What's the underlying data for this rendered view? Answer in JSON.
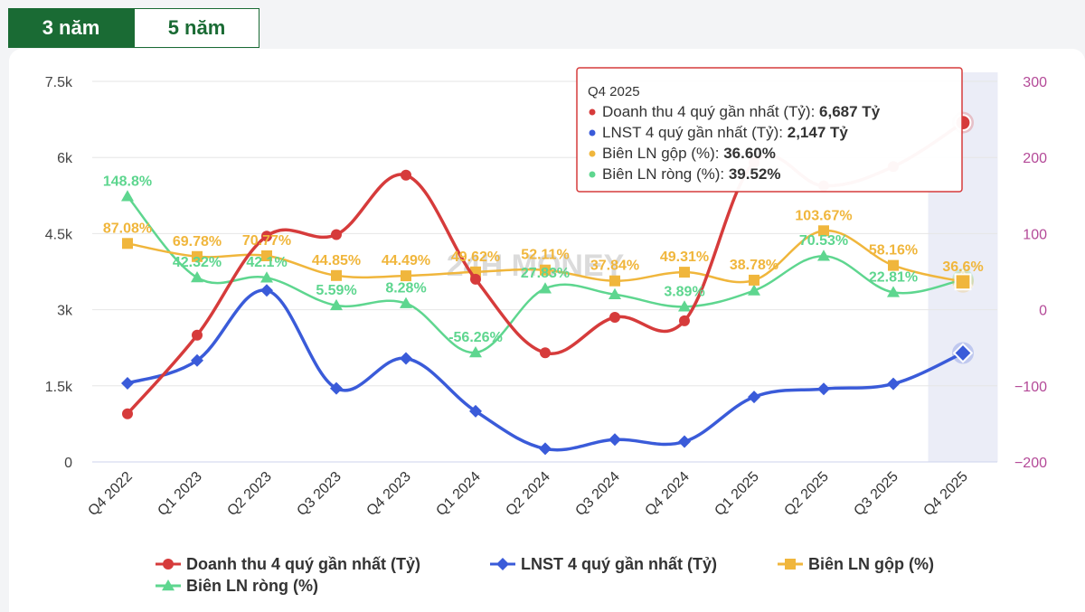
{
  "tabs": [
    {
      "label": "3 năm",
      "active": true
    },
    {
      "label": "5 năm",
      "active": false
    }
  ],
  "watermark": "24H MONEY",
  "chart_data": {
    "type": "line",
    "categories": [
      "Q4 2022",
      "Q1 2023",
      "Q2 2023",
      "Q3 2023",
      "Q4 2023",
      "Q1 2024",
      "Q2 2024",
      "Q3 2024",
      "Q4 2024",
      "Q1 2025",
      "Q2 2025",
      "Q3 2025",
      "Q4 2025"
    ],
    "left_axis": {
      "min": 0,
      "max": 7500,
      "ticks": [
        0,
        1500,
        3000,
        4500,
        6000,
        7500
      ],
      "tick_labels": [
        "0",
        "1.5k",
        "3k",
        "4.5k",
        "6k",
        "7.5k"
      ]
    },
    "right_axis": {
      "min": -200,
      "max": 300,
      "ticks": [
        -200,
        -100,
        0,
        100,
        200,
        300
      ],
      "tick_labels": [
        "−200",
        "−100",
        "0",
        "100",
        "200",
        "300"
      ]
    },
    "grid": true,
    "legend_position": "bottom",
    "highlight_category": "Q4 2025",
    "series": [
      {
        "name": "Doanh thu 4 quý gần nhất (Tỷ)",
        "axis": "left",
        "color": "#d63b3b",
        "marker": "circle",
        "values": [
          950,
          2500,
          4450,
          4480,
          5650,
          3600,
          2150,
          2850,
          2780,
          5900,
          5440,
          5820,
          6687
        ]
      },
      {
        "name": "LNST 4 quý gần nhất (Tỷ)",
        "axis": "left",
        "color": "#3a5bd9",
        "marker": "diamond",
        "values": [
          1550,
          2000,
          3380,
          1450,
          2040,
          1000,
          260,
          440,
          400,
          1280,
          1440,
          1540,
          2147
        ]
      },
      {
        "name": "Biên LN gộp (%)",
        "axis": "right",
        "color": "#f0b63c",
        "marker": "square",
        "values": [
          87.08,
          69.78,
          70.77,
          44.85,
          44.49,
          49.62,
          52.11,
          37.84,
          49.31,
          38.78,
          103.67,
          58.16,
          36.6
        ],
        "labels": [
          "87.08%",
          "69.78%",
          "70.77%",
          "44.85%",
          "44.49%",
          "49.62%",
          "52.11%",
          "37.84%",
          "49.31%",
          "38.78%",
          "103.67%",
          "58.16%",
          "36.6%"
        ]
      },
      {
        "name": "Biên LN ròng (%)",
        "axis": "right",
        "color": "#5ed68f",
        "marker": "triangle",
        "values": [
          148.8,
          42.32,
          42.1,
          5.59,
          8.28,
          -56.26,
          27.83,
          20,
          3.89,
          25,
          70.53,
          22.81,
          39.52
        ],
        "labels": [
          "148.8%",
          "42.32%",
          "42.1%",
          "5.59%",
          "8.28%",
          "-56.26%",
          "27.83%",
          "",
          "3.89%",
          "",
          "70.53%",
          "22.81%",
          ""
        ]
      }
    ],
    "tooltip": {
      "header": "Q4 2025",
      "rows": [
        {
          "label": "Doanh thu 4 quý gần nhất (Tỷ): ",
          "value": "6,687 Tỷ",
          "color": "#d63b3b"
        },
        {
          "label": "LNST 4 quý gần nhất (Tỷ): ",
          "value": "2,147 Tỷ",
          "color": "#3a5bd9"
        },
        {
          "label": "Biên LN gộp (%): ",
          "value": "36.60%",
          "color": "#f0b63c"
        },
        {
          "label": "Biên LN ròng (%): ",
          "value": "39.52%",
          "color": "#5ed68f"
        }
      ]
    }
  }
}
